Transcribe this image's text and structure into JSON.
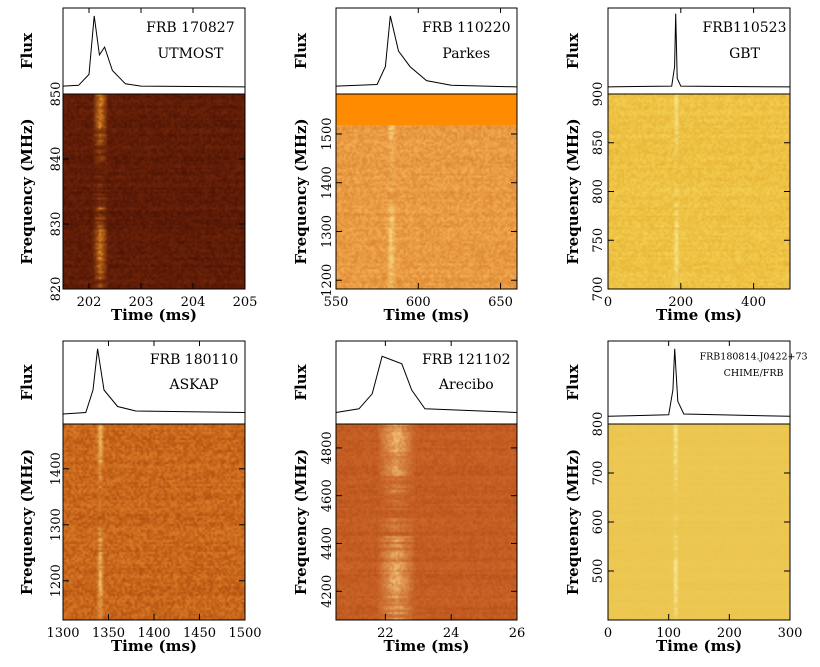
{
  "chart_data": [
    {
      "type": "heatmap",
      "title": "FRB 170827",
      "telescope": "UTMOST",
      "flux_label": "Flux",
      "xlabel": "Time (ms)",
      "ylabel": "Frequency (MHz)",
      "xlim": [
        201.5,
        205
      ],
      "ylim": [
        820,
        850
      ],
      "xticks": [
        202,
        203,
        204,
        205
      ],
      "yticks": [
        820,
        830,
        840,
        850
      ],
      "burst_time": 202.2,
      "burst_width": 0.15,
      "colormap": "dark-red",
      "profile": [
        [
          201.5,
          0.05
        ],
        [
          201.8,
          0.06
        ],
        [
          202.0,
          0.2
        ],
        [
          202.1,
          0.95
        ],
        [
          202.2,
          0.45
        ],
        [
          202.3,
          0.55
        ],
        [
          202.45,
          0.25
        ],
        [
          202.7,
          0.08
        ],
        [
          203.0,
          0.05
        ],
        [
          205.0,
          0.04
        ]
      ]
    },
    {
      "type": "heatmap",
      "title": "FRB 110220",
      "telescope": "Parkes",
      "flux_label": "Flux",
      "xlabel": "Time (ms)",
      "ylabel": "Frequency (MHz)",
      "xlim": [
        550,
        660
      ],
      "ylim": [
        1182,
        1582
      ],
      "xticks": [
        550,
        600,
        650
      ],
      "yticks": [
        1200,
        1300,
        1400,
        1500
      ],
      "burst_time": 583,
      "burst_width": 3,
      "masked_band": [
        1518,
        1582
      ],
      "colormap": "orange",
      "profile": [
        [
          550,
          0.05
        ],
        [
          575,
          0.07
        ],
        [
          580,
          0.3
        ],
        [
          583,
          0.95
        ],
        [
          588,
          0.5
        ],
        [
          595,
          0.3
        ],
        [
          605,
          0.12
        ],
        [
          620,
          0.06
        ],
        [
          660,
          0.04
        ]
      ]
    },
    {
      "type": "heatmap",
      "title": "FRB110523",
      "telescope": "GBT",
      "flux_label": "Flux",
      "xlabel": "Time (ms)",
      "ylabel": "Frequency (MHz)",
      "xlim": [
        0,
        500
      ],
      "ylim": [
        700,
        900
      ],
      "xticks": [
        0,
        200,
        400
      ],
      "yticks": [
        700,
        750,
        800,
        850,
        900
      ],
      "burst_time": 185,
      "burst_width": 4,
      "colormap": "yellow",
      "profile": [
        [
          0,
          0.04
        ],
        [
          175,
          0.05
        ],
        [
          183,
          0.3
        ],
        [
          186,
          0.98
        ],
        [
          190,
          0.15
        ],
        [
          200,
          0.05
        ],
        [
          500,
          0.04
        ]
      ]
    },
    {
      "type": "heatmap",
      "title": "FRB 180110",
      "telescope": "ASKAP",
      "flux_label": "Flux",
      "xlabel": "Time (ms)",
      "ylabel": "Frequency (MHz)",
      "xlim": [
        1300,
        1500
      ],
      "ylim": [
        1130,
        1480
      ],
      "xticks": [
        1300,
        1350,
        1400,
        1450,
        1500
      ],
      "yticks": [
        1200,
        1300,
        1400
      ],
      "burst_time": 1340,
      "burst_width": 4,
      "colormap": "orange-dark",
      "profile": [
        [
          1300,
          0.08
        ],
        [
          1325,
          0.1
        ],
        [
          1333,
          0.4
        ],
        [
          1338,
          0.95
        ],
        [
          1345,
          0.4
        ],
        [
          1360,
          0.18
        ],
        [
          1380,
          0.12
        ],
        [
          1500,
          0.1
        ]
      ]
    },
    {
      "type": "heatmap",
      "title": "FRB 121102",
      "telescope": "Arecibo",
      "flux_label": "Flux",
      "xlabel": "Time (ms)",
      "ylabel": "Frequency (MHz)",
      "xlim": [
        20.5,
        26
      ],
      "ylim": [
        4080,
        4900
      ],
      "xticks": [
        22,
        24,
        26
      ],
      "yticks": [
        4200,
        4400,
        4600,
        4800
      ],
      "burst_time": 22.3,
      "burst_width": 0.6,
      "colormap": "red-orange",
      "profile": [
        [
          20.5,
          0.1
        ],
        [
          21.2,
          0.15
        ],
        [
          21.6,
          0.35
        ],
        [
          21.9,
          0.85
        ],
        [
          22.2,
          0.8
        ],
        [
          22.5,
          0.75
        ],
        [
          22.8,
          0.4
        ],
        [
          23.2,
          0.15
        ],
        [
          26.0,
          0.1
        ]
      ]
    },
    {
      "type": "heatmap",
      "title": "FRB180814.J0422+73",
      "telescope": "CHIME/FRB",
      "flux_label": "Flux",
      "xlabel": "Time (ms)",
      "ylabel": "Frequency (MHz)",
      "xlim": [
        0,
        300
      ],
      "ylim": [
        400,
        800
      ],
      "xticks": [
        0,
        100,
        200,
        300
      ],
      "yticks": [
        500,
        600,
        700,
        800
      ],
      "burst_time": 110,
      "burst_width": 3,
      "colormap": "pale-yellow",
      "profile": [
        [
          0,
          0.05
        ],
        [
          100,
          0.07
        ],
        [
          107,
          0.4
        ],
        [
          110,
          0.95
        ],
        [
          115,
          0.25
        ],
        [
          125,
          0.08
        ],
        [
          300,
          0.05
        ]
      ]
    }
  ]
}
